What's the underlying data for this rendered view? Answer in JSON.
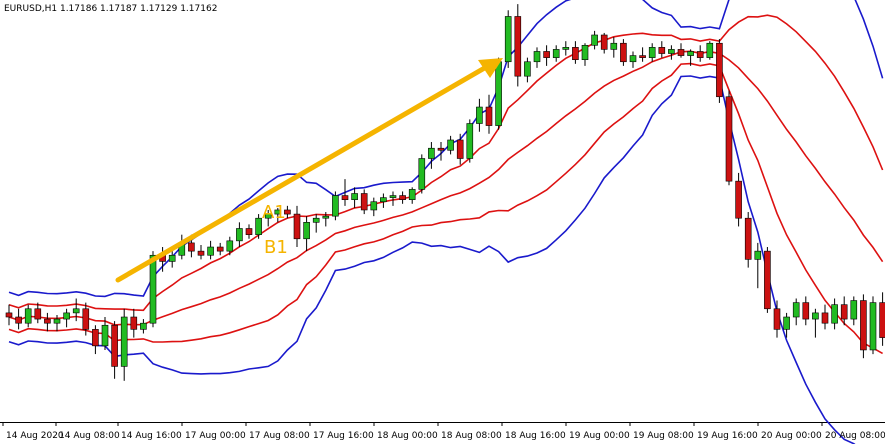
{
  "chart_data": {
    "type": "candlestick",
    "title": "EURUSD,H1  1.17186 1.17187 1.17129 1.17162",
    "symbol": "EURUSD",
    "timeframe": "H1",
    "ohlc_readout": [
      "1.17186",
      "1.17187",
      "1.17129",
      "1.17162"
    ],
    "x_tick_labels": [
      "14 Aug 2020",
      "14 Aug 08:00",
      "14 Aug 16:00",
      "17 Aug 00:00",
      "17 Aug 08:00",
      "17 Aug 16:00",
      "18 Aug 00:00",
      "18 Aug 08:00",
      "18 Aug 16:00",
      "19 Aug 00:00",
      "19 Aug 08:00",
      "19 Aug 16:00",
      "20 Aug 00:00",
      "20 Aug 08:00"
    ],
    "price_range": [
      1.1785,
      1.199
    ],
    "indicators": {
      "outer_band_color": "#1a1acc",
      "inner_band_color": "#dd1111",
      "up_candle_color": "#22bb22",
      "down_candle_color": "#cc1111",
      "arrow_color": "#f5b400",
      "label_color": "#f5b400"
    },
    "annotations": [
      {
        "type": "arrow",
        "label": ""
      },
      {
        "type": "label",
        "text": "A1"
      },
      {
        "type": "label",
        "text": "B1"
      }
    ],
    "candles": [
      [
        1.1838,
        1.1842,
        1.1832,
        1.1836
      ],
      [
        1.1836,
        1.184,
        1.183,
        1.1833
      ],
      [
        1.1833,
        1.1842,
        1.1831,
        1.184
      ],
      [
        1.184,
        1.1843,
        1.1833,
        1.1835
      ],
      [
        1.1835,
        1.1838,
        1.1829,
        1.1833
      ],
      [
        1.1833,
        1.1837,
        1.1829,
        1.1835
      ],
      [
        1.1835,
        1.184,
        1.1831,
        1.1838
      ],
      [
        1.1838,
        1.1845,
        1.1834,
        1.184
      ],
      [
        1.184,
        1.1843,
        1.1827,
        1.183
      ],
      [
        1.183,
        1.1832,
        1.1818,
        1.1822
      ],
      [
        1.1822,
        1.1836,
        1.182,
        1.1832
      ],
      [
        1.1832,
        1.1834,
        1.1806,
        1.1812
      ],
      [
        1.1812,
        1.184,
        1.1805,
        1.1836
      ],
      [
        1.1836,
        1.184,
        1.1826,
        1.183
      ],
      [
        1.183,
        1.1835,
        1.1828,
        1.1833
      ],
      [
        1.1833,
        1.1868,
        1.1831,
        1.1866
      ],
      [
        1.1866,
        1.187,
        1.1858,
        1.1863
      ],
      [
        1.1863,
        1.1869,
        1.186,
        1.1866
      ],
      [
        1.1866,
        1.1876,
        1.1864,
        1.1872
      ],
      [
        1.1872,
        1.1876,
        1.1865,
        1.1868
      ],
      [
        1.1868,
        1.1871,
        1.1864,
        1.1866
      ],
      [
        1.1866,
        1.1873,
        1.1864,
        1.187
      ],
      [
        1.187,
        1.1872,
        1.1866,
        1.1868
      ],
      [
        1.1868,
        1.1875,
        1.1866,
        1.1873
      ],
      [
        1.1873,
        1.1882,
        1.187,
        1.1879
      ],
      [
        1.1879,
        1.1881,
        1.1874,
        1.1876
      ],
      [
        1.1876,
        1.1886,
        1.1874,
        1.1884
      ],
      [
        1.1884,
        1.1888,
        1.188,
        1.1886
      ],
      [
        1.1886,
        1.1889,
        1.1882,
        1.1888
      ],
      [
        1.1888,
        1.189,
        1.1884,
        1.1886
      ],
      [
        1.1886,
        1.189,
        1.187,
        1.1874
      ],
      [
        1.1874,
        1.1885,
        1.1868,
        1.1882
      ],
      [
        1.1882,
        1.1886,
        1.1877,
        1.1884
      ],
      [
        1.1884,
        1.1887,
        1.188,
        1.1885
      ],
      [
        1.1885,
        1.1897,
        1.1883,
        1.1895
      ],
      [
        1.1895,
        1.1903,
        1.189,
        1.1893
      ],
      [
        1.1893,
        1.1899,
        1.1889,
        1.1896
      ],
      [
        1.1896,
        1.1898,
        1.1886,
        1.1888
      ],
      [
        1.1888,
        1.1894,
        1.1885,
        1.1892
      ],
      [
        1.1892,
        1.1896,
        1.1889,
        1.1894
      ],
      [
        1.1894,
        1.1897,
        1.189,
        1.1895
      ],
      [
        1.1895,
        1.1897,
        1.1891,
        1.1893
      ],
      [
        1.1893,
        1.1899,
        1.1891,
        1.1898
      ],
      [
        1.1898,
        1.1915,
        1.1896,
        1.1913
      ],
      [
        1.1913,
        1.1921,
        1.1908,
        1.1918
      ],
      [
        1.1918,
        1.1921,
        1.1912,
        1.1917
      ],
      [
        1.1917,
        1.1924,
        1.1915,
        1.1922
      ],
      [
        1.1922,
        1.1925,
        1.191,
        1.1913
      ],
      [
        1.1913,
        1.1932,
        1.1911,
        1.193
      ],
      [
        1.193,
        1.1942,
        1.1926,
        1.1938
      ],
      [
        1.1938,
        1.1944,
        1.1925,
        1.1929
      ],
      [
        1.1929,
        1.1962,
        1.1927,
        1.196
      ],
      [
        1.196,
        1.1985,
        1.1957,
        1.1982
      ],
      [
        1.1982,
        1.1988,
        1.1948,
        1.1953
      ],
      [
        1.1953,
        1.1962,
        1.195,
        1.196
      ],
      [
        1.196,
        1.1967,
        1.1957,
        1.1965
      ],
      [
        1.1965,
        1.1968,
        1.1958,
        1.1962
      ],
      [
        1.1962,
        1.1968,
        1.196,
        1.1966
      ],
      [
        1.1966,
        1.197,
        1.1963,
        1.1967
      ],
      [
        1.1967,
        1.197,
        1.1959,
        1.1961
      ],
      [
        1.1961,
        1.1969,
        1.1958,
        1.1968
      ],
      [
        1.1968,
        1.1975,
        1.1966,
        1.1973
      ],
      [
        1.1973,
        1.1974,
        1.1964,
        1.1966
      ],
      [
        1.1966,
        1.1972,
        1.1962,
        1.1969
      ],
      [
        1.1969,
        1.1971,
        1.1958,
        1.196
      ],
      [
        1.196,
        1.1965,
        1.1957,
        1.1963
      ],
      [
        1.1963,
        1.1967,
        1.196,
        1.1962
      ],
      [
        1.1962,
        1.1969,
        1.196,
        1.1967
      ],
      [
        1.1967,
        1.197,
        1.1962,
        1.1964
      ],
      [
        1.1964,
        1.1968,
        1.1961,
        1.1966
      ],
      [
        1.1966,
        1.1969,
        1.1962,
        1.1963
      ],
      [
        1.1963,
        1.1966,
        1.1958,
        1.1965
      ],
      [
        1.1965,
        1.1968,
        1.196,
        1.1962
      ],
      [
        1.1962,
        1.197,
        1.1961,
        1.1969
      ],
      [
        1.1969,
        1.1971,
        1.194,
        1.1943
      ],
      [
        1.1943,
        1.1946,
        1.19,
        1.1902
      ],
      [
        1.1902,
        1.1906,
        1.188,
        1.1884
      ],
      [
        1.1884,
        1.1887,
        1.186,
        1.1864
      ],
      [
        1.1864,
        1.1872,
        1.185,
        1.1868
      ],
      [
        1.1868,
        1.187,
        1.1838,
        1.184
      ],
      [
        1.184,
        1.1844,
        1.1826,
        1.183
      ],
      [
        1.183,
        1.1838,
        1.1826,
        1.1836
      ],
      [
        1.1836,
        1.1845,
        1.1832,
        1.1843
      ],
      [
        1.1843,
        1.1846,
        1.1832,
        1.1835
      ],
      [
        1.1835,
        1.184,
        1.1826,
        1.1838
      ],
      [
        1.1838,
        1.1842,
        1.183,
        1.1833
      ],
      [
        1.1833,
        1.1845,
        1.183,
        1.1842
      ],
      [
        1.1842,
        1.1846,
        1.1832,
        1.1835
      ],
      [
        1.1835,
        1.1846,
        1.1832,
        1.1844
      ],
      [
        1.1844,
        1.1847,
        1.1816,
        1.182
      ],
      [
        1.182,
        1.1846,
        1.1818,
        1.1843
      ],
      [
        1.1843,
        1.1848,
        1.1822,
        1.1826
      ]
    ]
  }
}
